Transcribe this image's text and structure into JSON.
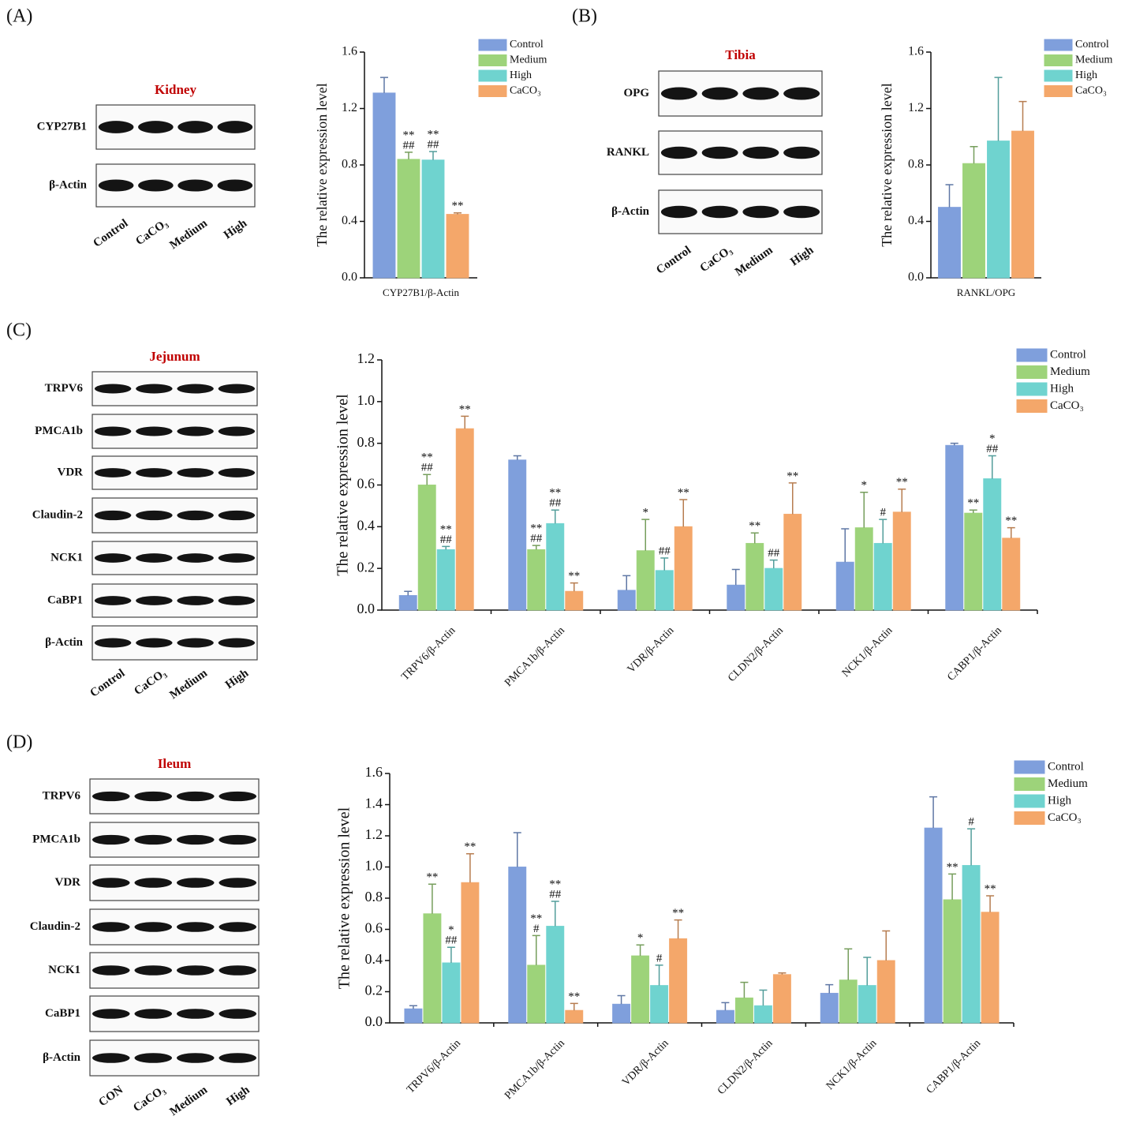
{
  "panel_labels": [
    "(A)",
    "(B)",
    "(C)",
    "(D)"
  ],
  "blots": [
    {
      "title": "Kidney",
      "rows": [
        "CYP27B1",
        "β-Actin"
      ],
      "lanes": [
        "Control",
        "CaCO₃",
        "Medium",
        "High"
      ]
    },
    {
      "title": "Tibia",
      "rows": [
        "OPG",
        "RANKL",
        "β-Actin"
      ],
      "lanes": [
        "Control",
        "CaCO₃",
        "Medium",
        "High"
      ]
    },
    {
      "title": "Jejunum",
      "rows": [
        "TRPV6",
        "PMCA1b",
        "VDR",
        "Claudin-2",
        "NCK1",
        "CaBP1",
        "β-Actin"
      ],
      "lanes": [
        "Control",
        "CaCO₃",
        "Medium",
        "High"
      ]
    },
    {
      "title": "Ileum",
      "rows": [
        "TRPV6",
        "PMCA1b",
        "VDR",
        "Claudin-2",
        "NCK1",
        "CaBP1",
        "β-Actin"
      ],
      "lanes": [
        "CON",
        "CaCO₃",
        "Medium",
        "High"
      ]
    }
  ],
  "chart_data": [
    {
      "type": "bar",
      "ylabel": "The relative expression level",
      "categories": [
        "CYP27B1/β-Actin"
      ],
      "ylim": [
        0,
        1.6
      ],
      "yticks": [
        {
          "value": 0,
          "label": "0.0"
        },
        0.4,
        0.8,
        1.2,
        1.6
      ],
      "series": [
        {
          "name": "Control",
          "color": "#7f9fdc",
          "values": [
            1.31
          ],
          "errors": [
            0.11
          ],
          "annotations": [
            []
          ]
        },
        {
          "name": "Medium",
          "color": "#9dd37a",
          "values": [
            0.84
          ],
          "errors": [
            0.05
          ],
          "annotations": [
            [
              "**",
              "##"
            ]
          ]
        },
        {
          "name": "High",
          "color": "#6fd3cf",
          "values": [
            0.835
          ],
          "errors": [
            0.06
          ],
          "annotations": [
            [
              "**",
              "##"
            ]
          ]
        },
        {
          "name": "CaCO₃",
          "color": "#f4a76a",
          "values": [
            0.45
          ],
          "errors": [
            0.01
          ],
          "annotations": [
            [
              "**"
            ]
          ]
        }
      ]
    },
    {
      "type": "bar",
      "ylabel": "The relative expression level",
      "categories": [
        "RANKL/OPG"
      ],
      "ylim": [
        0,
        1.6
      ],
      "yticks": [
        {
          "value": 0,
          "label": "0.0"
        },
        0.4,
        0.8,
        1.2,
        1.6
      ],
      "series": [
        {
          "name": "Control",
          "color": "#7f9fdc",
          "values": [
            0.5
          ],
          "errors": [
            0.16
          ],
          "annotations": [
            []
          ]
        },
        {
          "name": "Medium",
          "color": "#9dd37a",
          "values": [
            0.81
          ],
          "errors": [
            0.12
          ],
          "annotations": [
            []
          ]
        },
        {
          "name": "High",
          "color": "#6fd3cf",
          "values": [
            0.97
          ],
          "errors": [
            0.45
          ],
          "annotations": [
            []
          ]
        },
        {
          "name": "CaCO₃",
          "color": "#f4a76a",
          "values": [
            1.04
          ],
          "errors": [
            0.21
          ],
          "annotations": [
            []
          ]
        }
      ]
    },
    {
      "type": "bar",
      "ylabel": "The relative expression level",
      "categories": [
        "TRPV6/β-Actin",
        "PMCA1b/β-Actin",
        "VDR/β-Actin",
        "CLDN2/β-Actin",
        "NCK1/β-Actin",
        "CABP1/β-Actin"
      ],
      "ylim": [
        0,
        1.2
      ],
      "yticks": [
        {
          "value": 0,
          "label": "0.0"
        },
        0.2,
        0.4,
        0.6,
        0.8,
        {
          "value": 1,
          "label": "1.0"
        },
        1.2
      ],
      "series": [
        {
          "name": "Control",
          "color": "#7f9fdc",
          "values": [
            0.07,
            0.72,
            0.095,
            0.12,
            0.23,
            0.79
          ],
          "errors": [
            0.02,
            0.02,
            0.07,
            0.075,
            0.16,
            0.01
          ],
          "annotations": [
            [],
            [],
            [],
            [],
            [],
            []
          ]
        },
        {
          "name": "Medium",
          "color": "#9dd37a",
          "values": [
            0.6,
            0.29,
            0.285,
            0.32,
            0.395,
            0.465
          ],
          "errors": [
            0.05,
            0.02,
            0.15,
            0.05,
            0.17,
            0.015
          ],
          "annotations": [
            [
              "**",
              "##"
            ],
            [
              "**",
              "##"
            ],
            [
              "*"
            ],
            [
              "**"
            ],
            [
              "*"
            ],
            [
              "**"
            ]
          ]
        },
        {
          "name": "High",
          "color": "#6fd3cf",
          "values": [
            0.29,
            0.415,
            0.19,
            0.2,
            0.32,
            0.63
          ],
          "errors": [
            0.015,
            0.065,
            0.06,
            0.04,
            0.115,
            0.11
          ],
          "annotations": [
            [
              "**",
              "##"
            ],
            [
              "**",
              "##"
            ],
            [
              "##"
            ],
            [
              "##"
            ],
            [
              "#"
            ],
            [
              "*",
              "##"
            ]
          ]
        },
        {
          "name": "CaCO₃",
          "color": "#f4a76a",
          "values": [
            0.87,
            0.09,
            0.4,
            0.46,
            0.47,
            0.345
          ],
          "errors": [
            0.06,
            0.04,
            0.13,
            0.15,
            0.11,
            0.05
          ],
          "annotations": [
            [
              "**"
            ],
            [
              "**"
            ],
            [
              "**"
            ],
            [
              "**"
            ],
            [
              "**"
            ],
            [
              "**"
            ]
          ]
        }
      ]
    },
    {
      "type": "bar",
      "ylabel": "The relative expression level",
      "categories": [
        "TRPV6/β-Actin",
        "PMCA1b/β-Actin",
        "VDR/β-Actin",
        "CLDN2/β-Actin",
        "NCK1/β-Actin",
        "CABP1/β-Actin"
      ],
      "ylim": [
        0,
        1.6
      ],
      "yticks": [
        {
          "value": 0,
          "label": "0.0"
        },
        0.2,
        0.4,
        0.6,
        0.8,
        {
          "value": 1,
          "label": "1.0"
        },
        1.2,
        1.4,
        1.6
      ],
      "series": [
        {
          "name": "Control",
          "color": "#7f9fdc",
          "values": [
            0.09,
            1.0,
            0.12,
            0.08,
            0.19,
            1.25
          ],
          "errors": [
            0.02,
            0.22,
            0.055,
            0.05,
            0.055,
            0.2
          ],
          "annotations": [
            [],
            [],
            [],
            [],
            [],
            []
          ]
        },
        {
          "name": "Medium",
          "color": "#9dd37a",
          "values": [
            0.7,
            0.37,
            0.43,
            0.16,
            0.275,
            0.79
          ],
          "errors": [
            0.19,
            0.19,
            0.07,
            0.1,
            0.2,
            0.165
          ],
          "annotations": [
            [
              "**"
            ],
            [
              "**",
              "#"
            ],
            [
              "*"
            ],
            [],
            [],
            [
              "**"
            ]
          ]
        },
        {
          "name": "High",
          "color": "#6fd3cf",
          "values": [
            0.385,
            0.62,
            0.24,
            0.11,
            0.24,
            1.01
          ],
          "errors": [
            0.1,
            0.16,
            0.13,
            0.1,
            0.18,
            0.235
          ],
          "annotations": [
            [
              "*",
              "##"
            ],
            [
              "**",
              "##"
            ],
            [
              "#"
            ],
            [],
            [],
            [
              "#"
            ]
          ]
        },
        {
          "name": "CaCO₃",
          "color": "#f4a76a",
          "values": [
            0.9,
            0.08,
            0.54,
            0.31,
            0.4,
            0.71
          ],
          "errors": [
            0.185,
            0.045,
            0.12,
            0.01,
            0.19,
            0.105
          ],
          "annotations": [
            [
              "**"
            ],
            [
              "**"
            ],
            [
              "**"
            ],
            [],
            [],
            [
              "**"
            ]
          ]
        }
      ]
    }
  ]
}
